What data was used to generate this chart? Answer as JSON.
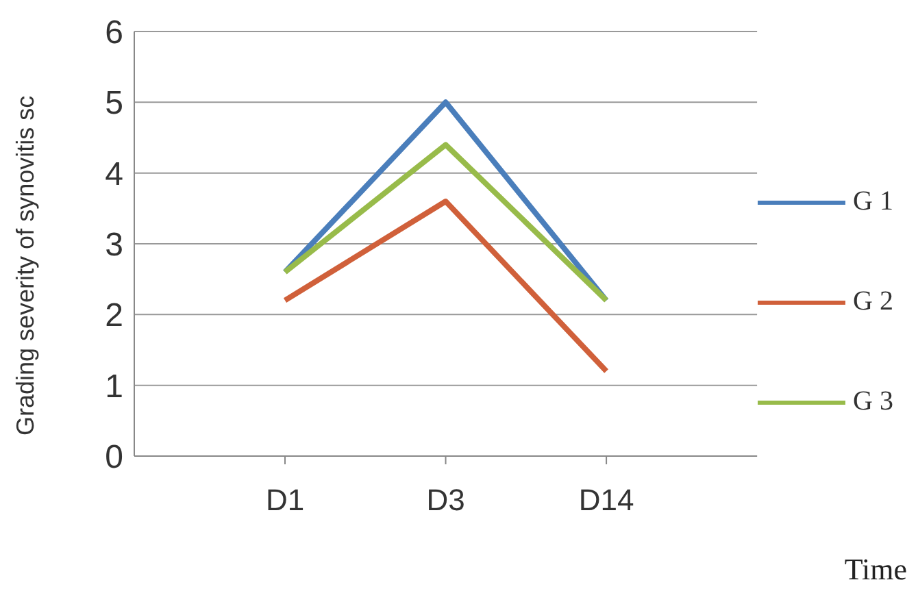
{
  "chart_data": {
    "type": "line",
    "xlabel": "Time",
    "ylabel": "Grading severity of synovitis sc",
    "categories": [
      "D1",
      "D3",
      "D14"
    ],
    "series": [
      {
        "name": "G 1",
        "color": "#4a7ebb",
        "values": [
          2.6,
          5.0,
          2.2
        ]
      },
      {
        "name": "G 2",
        "color": "#d0603a",
        "values": [
          2.2,
          3.6,
          1.2
        ]
      },
      {
        "name": "G 3",
        "color": "#98bb4a",
        "values": [
          2.6,
          4.4,
          2.2
        ]
      }
    ],
    "ylim": [
      0,
      6
    ],
    "yticks": [
      0,
      1,
      2,
      3,
      4,
      5,
      6
    ],
    "grid": "y",
    "legend": "right",
    "marker": "none",
    "line_style": "solid"
  }
}
